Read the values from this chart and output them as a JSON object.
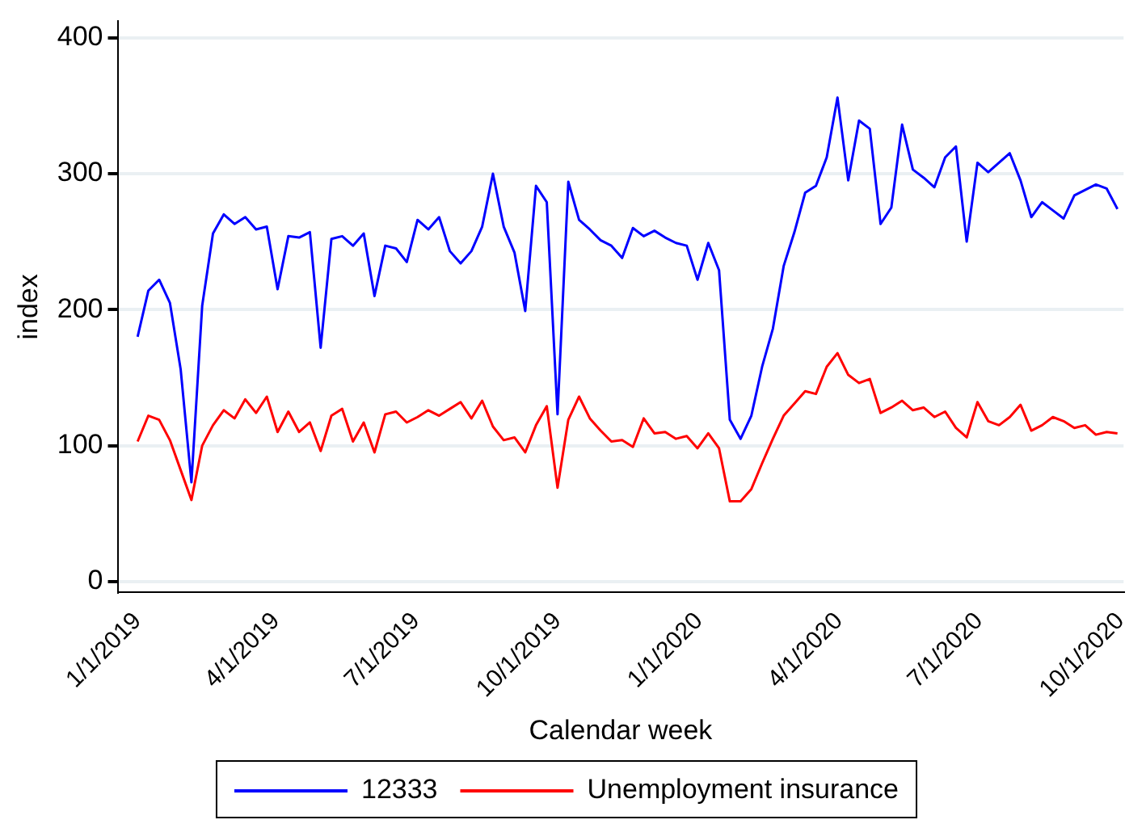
{
  "chart_data": {
    "type": "line",
    "xlabel": "Calendar week",
    "ylabel": "index",
    "x": [
      "2019-01-01",
      "2019-01-08",
      "2019-01-15",
      "2019-01-22",
      "2019-01-29",
      "2019-02-05",
      "2019-02-12",
      "2019-02-19",
      "2019-02-26",
      "2019-03-05",
      "2019-03-12",
      "2019-03-19",
      "2019-03-26",
      "2019-04-02",
      "2019-04-09",
      "2019-04-16",
      "2019-04-23",
      "2019-04-30",
      "2019-05-07",
      "2019-05-14",
      "2019-05-21",
      "2019-05-28",
      "2019-06-04",
      "2019-06-11",
      "2019-06-18",
      "2019-06-25",
      "2019-07-02",
      "2019-07-09",
      "2019-07-16",
      "2019-07-23",
      "2019-07-30",
      "2019-08-06",
      "2019-08-13",
      "2019-08-20",
      "2019-08-27",
      "2019-09-03",
      "2019-09-10",
      "2019-09-17",
      "2019-09-24",
      "2019-10-01",
      "2019-10-08",
      "2019-10-15",
      "2019-10-22",
      "2019-10-29",
      "2019-11-05",
      "2019-11-12",
      "2019-11-19",
      "2019-11-26",
      "2019-12-03",
      "2019-12-10",
      "2019-12-17",
      "2019-12-24",
      "2019-12-31",
      "2020-01-07",
      "2020-01-14",
      "2020-01-21",
      "2020-01-28",
      "2020-02-04",
      "2020-02-11",
      "2020-02-18",
      "2020-02-25",
      "2020-03-03",
      "2020-03-10",
      "2020-03-17",
      "2020-03-24",
      "2020-03-31",
      "2020-04-07",
      "2020-04-14",
      "2020-04-21",
      "2020-04-28",
      "2020-05-05",
      "2020-05-12",
      "2020-05-19",
      "2020-05-26",
      "2020-06-02",
      "2020-06-09",
      "2020-06-16",
      "2020-06-23",
      "2020-06-30",
      "2020-07-07",
      "2020-07-14",
      "2020-07-21",
      "2020-07-28",
      "2020-08-04",
      "2020-08-11",
      "2020-08-18",
      "2020-08-25",
      "2020-09-01",
      "2020-09-08",
      "2020-09-15",
      "2020-09-22",
      "2020-09-29"
    ],
    "series": [
      {
        "name": "12333",
        "color": "#0000ff",
        "values": [
          180,
          214,
          222,
          205,
          156,
          73,
          203,
          256,
          270,
          263,
          268,
          259,
          261,
          215,
          254,
          253,
          257,
          172,
          252,
          254,
          247,
          256,
          210,
          247,
          245,
          235,
          266,
          259,
          268,
          243,
          234,
          243,
          261,
          300,
          261,
          242,
          199,
          291,
          279,
          123,
          294,
          266,
          259,
          251,
          247,
          238,
          260,
          254,
          258,
          253,
          249,
          247,
          222,
          249,
          229,
          119,
          105,
          122,
          158,
          186,
          232,
          257,
          286,
          291,
          312,
          356,
          295,
          339,
          333,
          263,
          275,
          336,
          303,
          297,
          290,
          312,
          320,
          250,
          308,
          301,
          308,
          315,
          295,
          268,
          279,
          273,
          267,
          284,
          288,
          292,
          289,
          274
        ]
      },
      {
        "name": "Unemployment insurance",
        "color": "#ff0000",
        "values": [
          103,
          122,
          119,
          104,
          82,
          60,
          100,
          115,
          126,
          120,
          134,
          124,
          136,
          110,
          125,
          110,
          117,
          96,
          122,
          127,
          103,
          117,
          95,
          123,
          125,
          117,
          121,
          126,
          122,
          127,
          132,
          120,
          133,
          114,
          104,
          106,
          95,
          115,
          129,
          69,
          119,
          136,
          120,
          111,
          103,
          104,
          99,
          120,
          109,
          110,
          105,
          107,
          98,
          109,
          98,
          59,
          59,
          68,
          87,
          105,
          122,
          131,
          140,
          138,
          158,
          168,
          152,
          146,
          149,
          124,
          128,
          133,
          126,
          128,
          121,
          125,
          113,
          106,
          132,
          118,
          115,
          121,
          130,
          111,
          115,
          121,
          118,
          113,
          115,
          108,
          110,
          109
        ]
      }
    ],
    "xlim": [
      "2018-12-19",
      "2020-10-03"
    ],
    "xticks": [
      {
        "value": "2019-01-01",
        "label": "1/1/2019"
      },
      {
        "value": "2019-04-01",
        "label": "4/1/2019"
      },
      {
        "value": "2019-07-01",
        "label": "7/1/2019"
      },
      {
        "value": "2019-10-01",
        "label": "10/1/2019"
      },
      {
        "value": "2020-01-01",
        "label": "1/1/2020"
      },
      {
        "value": "2020-04-01",
        "label": "4/1/2020"
      },
      {
        "value": "2020-07-01",
        "label": "7/1/2020"
      },
      {
        "value": "2020-10-01",
        "label": "10/1/2020"
      }
    ],
    "ylim": [
      -8,
      412
    ],
    "yticks": [
      0,
      100,
      200,
      300,
      400
    ],
    "grid": "y",
    "legend": "bottom",
    "marker": "none",
    "line_style": "solid"
  }
}
